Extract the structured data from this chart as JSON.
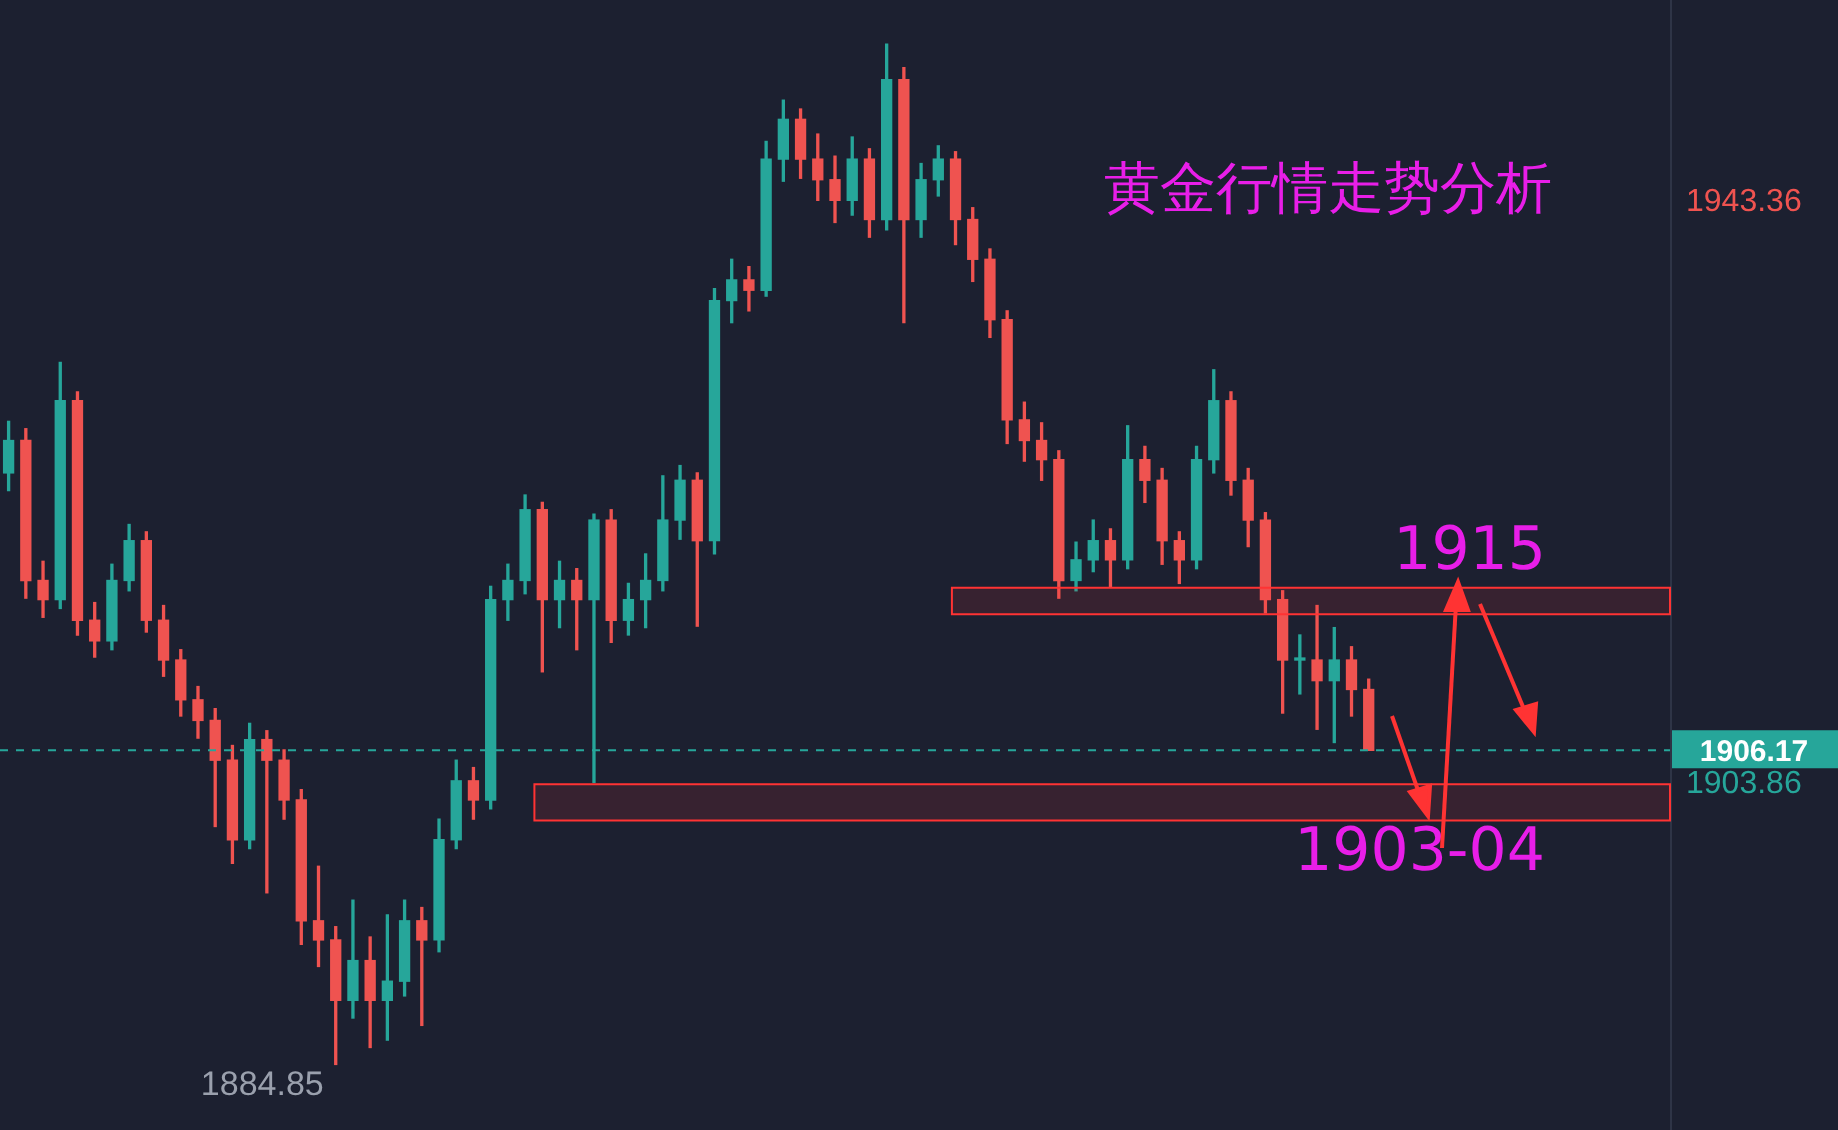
{
  "chart_data": {
    "type": "candlestick",
    "title": "黄金行情走势分析",
    "categories": [
      null,
      null,
      null,
      null,
      null,
      null,
      null,
      null,
      null,
      null,
      null,
      null,
      null,
      null,
      null,
      null,
      null,
      null,
      null,
      null,
      null,
      null,
      null,
      null,
      null,
      null,
      null,
      null,
      null,
      null,
      null,
      null,
      null,
      null,
      null,
      null,
      null,
      null,
      null,
      null,
      null,
      null,
      null,
      null,
      null,
      null,
      null,
      null,
      null,
      null,
      null,
      null,
      null,
      null,
      null,
      null,
      null,
      null,
      null,
      null,
      null,
      null,
      null,
      null,
      null,
      null,
      null,
      null,
      null,
      null,
      null,
      null,
      null,
      null,
      null,
      null,
      null,
      null,
      null,
      null,
      null,
      null,
      null,
      null,
      null,
      null,
      null,
      null,
      null,
      null,
      null,
      null,
      null,
      null,
      null,
      null,
      null
    ],
    "ohlc": [
      [
        1925.0,
        1928.5,
        1923.8,
        1927.2
      ],
      [
        1927.2,
        1928.0,
        1916.5,
        1917.7
      ],
      [
        1917.7,
        1919.0,
        1915.2,
        1916.4
      ],
      [
        1916.4,
        1932.5,
        1915.8,
        1929.9
      ],
      [
        1929.9,
        1930.5,
        1914.0,
        1915.0
      ],
      [
        1915.0,
        1916.2,
        1912.5,
        1913.6
      ],
      [
        1913.6,
        1918.8,
        1913.0,
        1917.7
      ],
      [
        1917.7,
        1921.5,
        1917.0,
        1920.4
      ],
      [
        1920.4,
        1921.0,
        1914.2,
        1915.0
      ],
      [
        1915.0,
        1916.0,
        1911.2,
        1912.3
      ],
      [
        1912.3,
        1913.0,
        1908.5,
        1909.6
      ],
      [
        1909.6,
        1910.5,
        1907.0,
        1908.2
      ],
      [
        1908.2,
        1909.0,
        1901.0,
        1905.5
      ],
      [
        1905.5,
        1906.5,
        1898.5,
        1900.1
      ],
      [
        1900.1,
        1908.0,
        1899.5,
        1906.9
      ],
      [
        1906.9,
        1907.5,
        1896.5,
        1905.5
      ],
      [
        1905.5,
        1906.2,
        1901.5,
        1902.8
      ],
      [
        1902.8,
        1903.5,
        1893.0,
        1894.6
      ],
      [
        1894.6,
        1898.3,
        1891.5,
        1893.3
      ],
      [
        1893.3,
        1894.2,
        1884.85,
        1889.2
      ],
      [
        1889.2,
        1896.0,
        1888.0,
        1891.9
      ],
      [
        1891.9,
        1893.5,
        1886.0,
        1889.2
      ],
      [
        1889.2,
        1895.0,
        1886.5,
        1890.5
      ],
      [
        1890.5,
        1896.0,
        1889.5,
        1894.6
      ],
      [
        1894.6,
        1895.5,
        1887.5,
        1893.3
      ],
      [
        1893.3,
        1901.5,
        1892.5,
        1900.1
      ],
      [
        1900.1,
        1905.5,
        1899.5,
        1904.1
      ],
      [
        1904.1,
        1905.0,
        1901.5,
        1902.8
      ],
      [
        1902.8,
        1917.3,
        1902.2,
        1916.4
      ],
      [
        1916.4,
        1918.8,
        1915.0,
        1917.7
      ],
      [
        1917.7,
        1923.5,
        1916.8,
        1922.5
      ],
      [
        1922.5,
        1923.0,
        1911.5,
        1916.4
      ],
      [
        1916.4,
        1919.0,
        1914.5,
        1917.7
      ],
      [
        1917.7,
        1918.5,
        1913.0,
        1916.4
      ],
      [
        1916.4,
        1922.2,
        1904.0,
        1921.8
      ],
      [
        1921.8,
        1922.5,
        1913.5,
        1915.0
      ],
      [
        1915.0,
        1917.5,
        1914.0,
        1916.4
      ],
      [
        1916.4,
        1919.5,
        1914.5,
        1917.7
      ],
      [
        1917.7,
        1924.8,
        1917.0,
        1921.8
      ],
      [
        1921.8,
        1925.5,
        1920.5,
        1924.5
      ],
      [
        1924.5,
        1925.0,
        1914.6,
        1920.4
      ],
      [
        1920.4,
        1937.5,
        1919.5,
        1936.7
      ],
      [
        1936.7,
        1939.5,
        1935.2,
        1938.1
      ],
      [
        1938.1,
        1939.0,
        1936.0,
        1937.4
      ],
      [
        1937.4,
        1947.5,
        1937.0,
        1946.3
      ],
      [
        1946.3,
        1950.3,
        1944.8,
        1949.0
      ],
      [
        1949.0,
        1949.7,
        1945.0,
        1946.3
      ],
      [
        1946.3,
        1948.0,
        1943.5,
        1944.9
      ],
      [
        1944.9,
        1946.5,
        1942.0,
        1943.5
      ],
      [
        1943.5,
        1947.8,
        1942.5,
        1946.3
      ],
      [
        1946.3,
        1947.0,
        1941.0,
        1942.2
      ],
      [
        1942.2,
        1954.1,
        1941.5,
        1951.7
      ],
      [
        1951.7,
        1952.5,
        1935.2,
        1942.2
      ],
      [
        1942.2,
        1946.0,
        1941.0,
        1944.9
      ],
      [
        1944.9,
        1947.2,
        1943.8,
        1946.3
      ],
      [
        1946.3,
        1946.8,
        1940.5,
        1942.2
      ],
      [
        1942.2,
        1943.0,
        1938.0,
        1939.5
      ],
      [
        1939.5,
        1940.2,
        1934.2,
        1935.4
      ],
      [
        1935.4,
        1936.0,
        1927.0,
        1928.6
      ],
      [
        1928.6,
        1929.8,
        1925.8,
        1927.2
      ],
      [
        1927.2,
        1928.4,
        1924.5,
        1925.9
      ],
      [
        1925.9,
        1926.5,
        1916.5,
        1917.7
      ],
      [
        1917.7,
        1920.3,
        1917.0,
        1919.1
      ],
      [
        1919.1,
        1921.8,
        1918.3,
        1920.4
      ],
      [
        1920.4,
        1921.2,
        1917.3,
        1919.1
      ],
      [
        1919.1,
        1928.2,
        1918.5,
        1925.9
      ],
      [
        1925.9,
        1926.8,
        1923.0,
        1924.5
      ],
      [
        1924.5,
        1925.3,
        1918.8,
        1920.4
      ],
      [
        1920.4,
        1921.0,
        1917.5,
        1919.1
      ],
      [
        1919.1,
        1926.8,
        1918.5,
        1925.9
      ],
      [
        1925.9,
        1932.0,
        1925.0,
        1929.9
      ],
      [
        1929.9,
        1930.5,
        1923.5,
        1924.5
      ],
      [
        1924.5,
        1925.3,
        1920.0,
        1921.8
      ],
      [
        1921.8,
        1922.3,
        1915.5,
        1916.4
      ],
      [
        1916.4,
        1917.0,
        1908.7,
        1912.3
      ],
      [
        1912.3,
        1914.0,
        1910.0,
        1912.3
      ],
      [
        1912.3,
        1916.0,
        1907.6,
        1910.9
      ],
      [
        1910.9,
        1914.5,
        1906.7,
        1912.3
      ],
      [
        1912.3,
        1913.2,
        1908.5,
        1910.3
      ],
      [
        1910.3,
        1911.0,
        1906.17,
        1906.17
      ],
      null,
      null,
      null,
      null,
      null,
      null,
      null,
      null,
      null,
      null,
      null,
      null,
      null,
      null,
      null,
      null,
      null
    ],
    "ylim": [
      1880.4,
      1957.1
    ],
    "yticks": [
      1943.36,
      1903.86
    ],
    "tick_labels": "y",
    "ref_lines": [
      {
        "axis": "y",
        "value": 1906.17,
        "label": "1906.17",
        "color": "#26a69a",
        "line_style": "dashed"
      }
    ],
    "bands": [
      {
        "axis": "y",
        "from": 1915.4,
        "to": 1917.2,
        "label": "1915",
        "color": "#ff3333"
      },
      {
        "axis": "y",
        "from": 1901.4,
        "to": 1903.86,
        "label": "1903-04",
        "color": "#ff3333"
      }
    ],
    "annotations": [
      "1884.85"
    ],
    "grid": false,
    "legend": false
  }
}
